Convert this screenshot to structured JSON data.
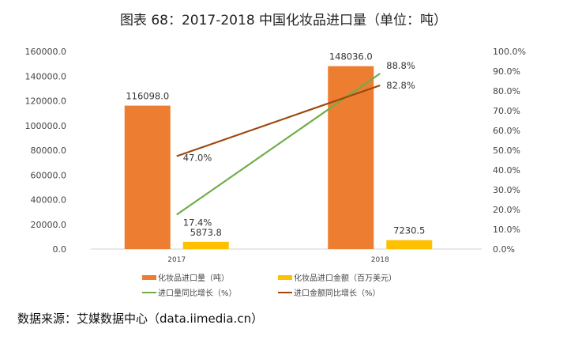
{
  "chart_data": {
    "type": "bar",
    "title": "图表 68：2017-2018 中国化妆品进口量（单位：吨）",
    "categories": [
      "2017",
      "2018"
    ],
    "left_axis": {
      "range": [
        0,
        160000
      ],
      "ticks": [
        "0.0",
        "20000.0",
        "40000.0",
        "60000.0",
        "80000.0",
        "100000.0",
        "120000.0",
        "140000.0",
        "160000.0"
      ]
    },
    "right_axis": {
      "range": [
        0,
        100
      ],
      "ticks": [
        "0.0%",
        "10.0%",
        "20.0%",
        "30.0%",
        "40.0%",
        "50.0%",
        "60.0%",
        "70.0%",
        "80.0%",
        "90.0%",
        "100.0%"
      ]
    },
    "series": [
      {
        "name": "化妆品进口量（吨）",
        "type": "bar",
        "axis": "left",
        "color": "#ED7D31",
        "values": [
          116098.0,
          148036.0
        ],
        "labels": [
          "116098.0",
          "148036.0"
        ]
      },
      {
        "name": "化妆品进口金额（百万美元）",
        "type": "bar",
        "axis": "left",
        "color": "#FFC000",
        "values": [
          5873.8,
          7230.5
        ],
        "labels": [
          "5873.8",
          "7230.5"
        ]
      },
      {
        "name": "进口量同比增长（%）",
        "type": "line",
        "axis": "right",
        "color": "#70AD47",
        "values": [
          17.4,
          88.8
        ],
        "labels": [
          "17.4%",
          "88.8%"
        ]
      },
      {
        "name": "进口金额同比增长（%）",
        "type": "line",
        "axis": "right",
        "color": "#9E480E",
        "values": [
          47.0,
          82.8
        ],
        "labels": [
          "47.0%",
          "82.8%"
        ]
      }
    ],
    "legend": "bottom",
    "grid": false
  },
  "source": "数据来源：艾媒数据中心（data.iimedia.cn）"
}
